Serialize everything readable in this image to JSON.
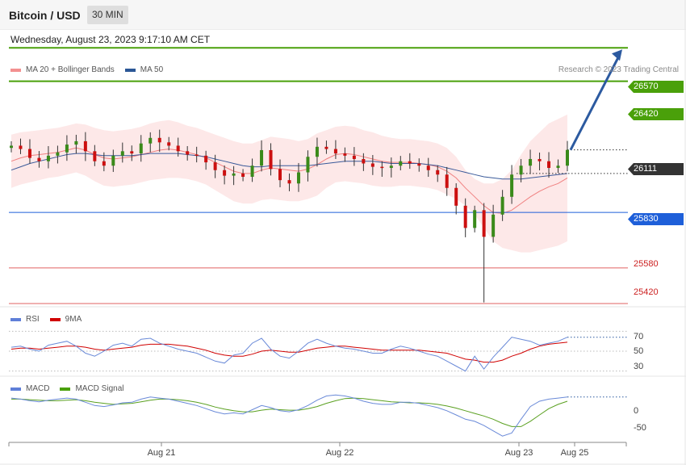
{
  "header": {
    "title": "Bitcoin / USD",
    "timeframe": "30 MIN"
  },
  "datetime": "Wednesday, August 23, 2023 9:17:10 AM CET",
  "credit": "Research © 2023 Trading Central",
  "colors": {
    "resistance": "#4aa00a",
    "support": "#1e5fd9",
    "support_weak": "#e06060",
    "current": "#333333",
    "arrow": "#2c5aa0",
    "bullish": "#3a8a1a",
    "bearish": "#cc1010",
    "bollinger_fill": "#fde8e8",
    "ma20": "#f08080",
    "ma50": "#3a5a9a",
    "rsi": "#6a8ad8",
    "rsi_ma": "#d00000",
    "macd": "#6a8ad8",
    "macd_signal": "#5aa020"
  },
  "legend_price": [
    {
      "label": "MA 20 + Bollinger Bands",
      "color": "#f39090",
      "icon": "line-swatch"
    },
    {
      "label": "MA 50",
      "color": "#2b5796",
      "icon": "line-swatch"
    }
  ],
  "legend_rsi": [
    {
      "label": "RSI",
      "color": "#5f7fd8",
      "icon": "line-swatch"
    },
    {
      "label": "9MA",
      "color": "#d00000",
      "icon": "line-swatch"
    }
  ],
  "legend_macd": [
    {
      "label": "MACD",
      "color": "#5f7fd8",
      "icon": "line-swatch"
    },
    {
      "label": "MACD Signal",
      "color": "#4aa00a",
      "icon": "line-swatch"
    }
  ],
  "price_labels": {
    "r2": "26570",
    "r1": "26420",
    "current": "26111",
    "s1": "25830",
    "s2": "25580",
    "s3": "25420"
  },
  "rsi_ticks": [
    "70",
    "50",
    "30"
  ],
  "macd_ticks": [
    "0",
    "-50"
  ],
  "x_ticks": [
    "Aug 21",
    "Aug 22",
    "Aug 23",
    "Aug 25"
  ],
  "chart_data": [
    {
      "type": "candlestick",
      "title": "Bitcoin / USD",
      "timeframe": "30 MIN",
      "ylim": [
        25380,
        26640
      ],
      "levels": {
        "resistance": [
          26570,
          26420
        ],
        "current": 26111,
        "support": [
          25830,
          25580,
          25420
        ]
      },
      "target_arrow": {
        "from": 26111,
        "to": 26570
      },
      "close_points": [
        26130,
        26115,
        26075,
        26060,
        26085,
        26100,
        26135,
        26150,
        26105,
        26060,
        26040,
        26085,
        26105,
        26095,
        26140,
        26165,
        26145,
        26130,
        26105,
        26090,
        26085,
        26055,
        26020,
        25995,
        26005,
        25990,
        26040,
        26110,
        26025,
        25975,
        25960,
        26010,
        26080,
        26125,
        26115,
        26095,
        26085,
        26070,
        26050,
        26035,
        26030,
        26040,
        26060,
        26050,
        26040,
        26020,
        26000,
        25940,
        25860,
        25760,
        25840,
        25720,
        25820,
        25900,
        26000,
        26040,
        26070,
        26060,
        26030,
        26040,
        26111
      ],
      "ma20_points": [
        26060,
        26075,
        26085,
        26090,
        26095,
        26100,
        26110,
        26120,
        26110,
        26090,
        26075,
        26070,
        26075,
        26080,
        26090,
        26100,
        26110,
        26115,
        26110,
        26100,
        26090,
        26075,
        26055,
        26035,
        26015,
        26005,
        26005,
        26020,
        26030,
        26025,
        26020,
        26015,
        26025,
        26045,
        26070,
        26090,
        26095,
        26090,
        26080,
        26070,
        26060,
        26055,
        26055,
        26055,
        26050,
        26045,
        26035,
        26015,
        25985,
        25940,
        25900,
        25860,
        25830,
        25825,
        25840,
        25870,
        25900,
        25925,
        25945,
        25960,
        25985
      ],
      "bollinger_upper": [
        26180,
        26190,
        26195,
        26200,
        26205,
        26210,
        26220,
        26230,
        26225,
        26210,
        26200,
        26195,
        26200,
        26205,
        26215,
        26230,
        26240,
        26245,
        26235,
        26220,
        26210,
        26195,
        26180,
        26165,
        26150,
        26140,
        26140,
        26155,
        26170,
        26165,
        26160,
        26150,
        26160,
        26185,
        26200,
        26215,
        26220,
        26215,
        26200,
        26190,
        26175,
        26165,
        26160,
        26160,
        26155,
        26150,
        26140,
        26120,
        26080,
        26020,
        25980,
        25960,
        25960,
        25980,
        26020,
        26090,
        26150,
        26190,
        26230,
        26250,
        26270
      ],
      "bollinger_lower": [
        25940,
        25955,
        25965,
        25975,
        25985,
        25990,
        26000,
        26010,
        25995,
        25970,
        25950,
        25945,
        25950,
        25955,
        25965,
        25975,
        25980,
        25985,
        25985,
        25980,
        25970,
        25955,
        25930,
        25905,
        25880,
        25870,
        25870,
        25885,
        25890,
        25885,
        25880,
        25880,
        25890,
        25905,
        25940,
        25965,
        25970,
        25965,
        25960,
        25950,
        25945,
        25945,
        25950,
        25950,
        25945,
        25940,
        25930,
        25910,
        25890,
        25860,
        25820,
        25760,
        25700,
        25670,
        25660,
        25650,
        25650,
        25660,
        25670,
        25680,
        25700
      ],
      "ma50_points": [
        26020,
        26035,
        26050,
        26060,
        26070,
        26080,
        26090,
        26095,
        26095,
        26090,
        26085,
        26085,
        26085,
        26085,
        26090,
        26095,
        26095,
        26095,
        26095,
        26090,
        26085,
        26080,
        26070,
        26060,
        26050,
        26040,
        26035,
        26035,
        26040,
        26040,
        26040,
        26040,
        26040,
        26045,
        26050,
        26055,
        26060,
        26060,
        26060,
        26060,
        26055,
        26050,
        26050,
        26050,
        26050,
        26045,
        26040,
        26030,
        26020,
        26010,
        26000,
        25990,
        25985,
        25980,
        25980,
        25980,
        25985,
        25990,
        25995,
        26000,
        26005
      ]
    },
    {
      "type": "line",
      "title": "RSI",
      "ylim": [
        20,
        80
      ],
      "reference_lines": [
        70,
        50,
        30
      ],
      "series": [
        {
          "name": "RSI",
          "values": [
            54,
            55,
            52,
            50,
            56,
            58,
            60,
            55,
            48,
            45,
            50,
            56,
            58,
            55,
            62,
            63,
            58,
            55,
            52,
            50,
            48,
            44,
            40,
            38,
            46,
            48,
            58,
            63,
            52,
            45,
            43,
            50,
            58,
            62,
            58,
            55,
            53,
            52,
            50,
            48,
            48,
            52,
            55,
            53,
            50,
            47,
            45,
            40,
            35,
            30,
            45,
            32,
            44,
            54,
            64,
            62,
            60,
            56,
            58,
            60,
            64
          ]
        },
        {
          "name": "9MA",
          "values": [
            52,
            53,
            53,
            52,
            53,
            54,
            55,
            55,
            54,
            52,
            51,
            52,
            53,
            54,
            56,
            57,
            57,
            57,
            56,
            55,
            53,
            51,
            48,
            46,
            45,
            45,
            47,
            50,
            51,
            50,
            49,
            49,
            51,
            53,
            54,
            55,
            55,
            54,
            53,
            52,
            51,
            51,
            51,
            51,
            51,
            50,
            49,
            48,
            45,
            42,
            41,
            39,
            39,
            41,
            45,
            48,
            52,
            55,
            57,
            58,
            59
          ]
        }
      ]
    },
    {
      "type": "line",
      "title": "MACD",
      "ylim": [
        -80,
        30
      ],
      "series": [
        {
          "name": "MACD",
          "values": [
            10,
            8,
            5,
            3,
            6,
            8,
            10,
            8,
            2,
            -4,
            -6,
            -3,
            1,
            2,
            8,
            12,
            10,
            8,
            4,
            0,
            -4,
            -10,
            -16,
            -20,
            -18,
            -20,
            -12,
            -4,
            -8,
            -14,
            -16,
            -12,
            -4,
            6,
            14,
            16,
            14,
            10,
            4,
            0,
            -2,
            -2,
            2,
            2,
            0,
            -4,
            -8,
            -14,
            -22,
            -30,
            -34,
            -42,
            -52,
            -62,
            -56,
            -30,
            -6,
            4,
            8,
            10,
            12
          ]
        },
        {
          "name": "MACD Signal",
          "values": [
            8,
            8,
            7,
            6,
            5,
            5,
            6,
            7,
            5,
            2,
            0,
            -2,
            -1,
            0,
            3,
            6,
            8,
            8,
            7,
            5,
            2,
            -2,
            -7,
            -11,
            -14,
            -16,
            -16,
            -13,
            -11,
            -12,
            -13,
            -13,
            -10,
            -6,
            0,
            5,
            9,
            10,
            9,
            7,
            5,
            3,
            2,
            1,
            1,
            0,
            -2,
            -5,
            -9,
            -14,
            -19,
            -24,
            -30,
            -38,
            -44,
            -44,
            -34,
            -22,
            -10,
            -2,
            4
          ]
        }
      ]
    }
  ]
}
